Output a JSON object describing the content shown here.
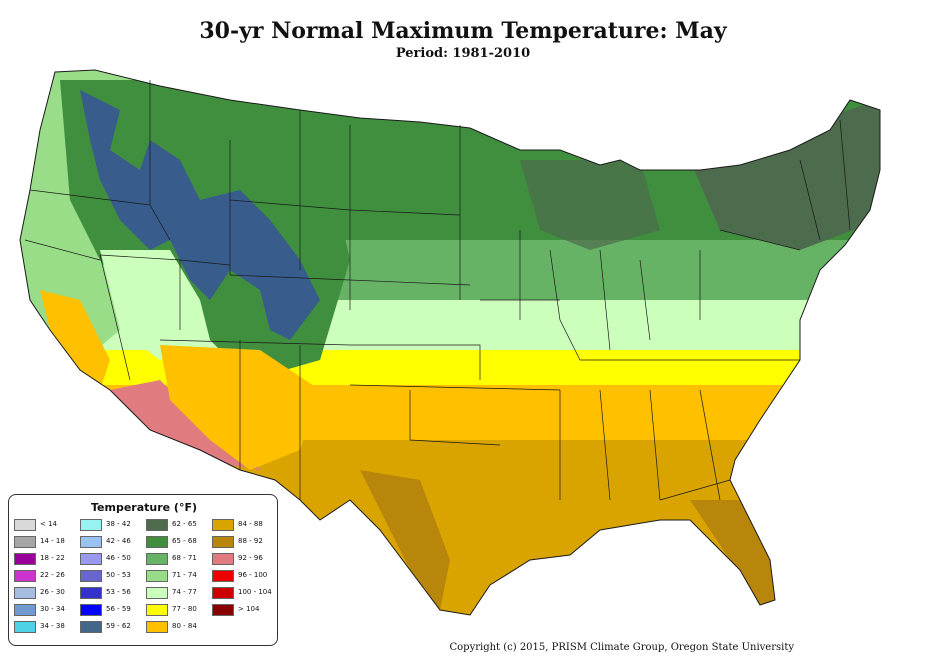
{
  "title": "30-yr Normal Maximum Temperature: May",
  "subtitle": "Period: 1981-2010",
  "legend": {
    "title": "Temperature (°F)",
    "items": [
      {
        "label": "< 14",
        "color": "#d9d9d9"
      },
      {
        "label": "14 - 18",
        "color": "#a6a6a6"
      },
      {
        "label": "18 - 22",
        "color": "#990099"
      },
      {
        "label": "22 - 26",
        "color": "#cc33cc"
      },
      {
        "label": "26 - 30",
        "color": "#a6bde0"
      },
      {
        "label": "30 - 34",
        "color": "#6f9bd1"
      },
      {
        "label": "34 - 38",
        "color": "#4dd2e6"
      },
      {
        "label": "38 - 42",
        "color": "#99f2f2"
      },
      {
        "label": "42 - 46",
        "color": "#99c2f2"
      },
      {
        "label": "46 - 50",
        "color": "#9999ee"
      },
      {
        "label": "50 - 53",
        "color": "#6666cc"
      },
      {
        "label": "53 - 56",
        "color": "#3333cc"
      },
      {
        "label": "56 - 59",
        "color": "#0000ff"
      },
      {
        "label": "59 - 62",
        "color": "#446688"
      },
      {
        "label": "62 - 65",
        "color": "#4d6b4d"
      },
      {
        "label": "65 - 68",
        "color": "#3f8f3f"
      },
      {
        "label": "68 - 71",
        "color": "#66b366"
      },
      {
        "label": "71 - 74",
        "color": "#99dd88"
      },
      {
        "label": "74 - 77",
        "color": "#ccffbb"
      },
      {
        "label": "77 - 80",
        "color": "#ffff00"
      },
      {
        "label": "80 - 84",
        "color": "#ffc000"
      },
      {
        "label": "84 - 88",
        "color": "#d9a400"
      },
      {
        "label": "88 - 92",
        "color": "#b8860b"
      },
      {
        "label": "92 - 96",
        "color": "#e07b80"
      },
      {
        "label": "96 - 100",
        "color": "#ee0000"
      },
      {
        "label": "100 - 104",
        "color": "#cc0000"
      },
      {
        "label": "> 104",
        "color": "#880000"
      }
    ]
  },
  "copyright": "Copyright (c) 2015, PRISM Climate Group, Oregon State University",
  "colors": {
    "state_border": "#1a1a1a",
    "mountain_zone": "#3333cc",
    "north_zone": "#3f8f3f",
    "mid_zone": "#ccffbb",
    "south_zone": "#d9a400",
    "desert_zone": "#e07b80"
  }
}
